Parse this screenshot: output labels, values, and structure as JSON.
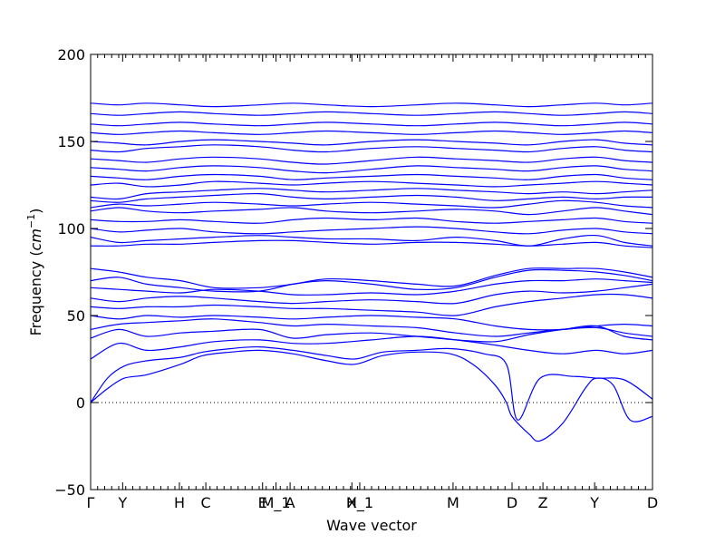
{
  "chart_data": {
    "type": "line",
    "title": "",
    "xlabel": "Wave vector",
    "ylabel_prefix": "Frequency (",
    "ylabel_unit_base": "cm",
    "ylabel_unit_exp": "−1",
    "ylabel_suffix": ")",
    "ylim": [
      -50,
      200
    ],
    "xlim": [
      0,
      1
    ],
    "yticks": [
      -50,
      0,
      50,
      100,
      150,
      200
    ],
    "ytick_labels": [
      "−50",
      "0",
      "50",
      "100",
      "150",
      "200"
    ],
    "high_symmetry_points": [
      {
        "label": "Γ",
        "x": 0.0
      },
      {
        "label": "Y",
        "x": 0.057
      },
      {
        "label": "H",
        "x": 0.158
      },
      {
        "label": "C",
        "x": 0.205
      },
      {
        "label": "E",
        "x": 0.306
      },
      {
        "label": "M_1",
        "x": 0.33
      },
      {
        "label": "A",
        "x": 0.355
      },
      {
        "label": "X",
        "x": 0.465
      },
      {
        "label": "H_1",
        "x": 0.479
      },
      {
        "label": "M",
        "x": 0.645
      },
      {
        "label": "D",
        "x": 0.75
      },
      {
        "label": "Z",
        "x": 0.805
      },
      {
        "label": "Y",
        "x": 0.897
      },
      {
        "label": "D",
        "x": 1.0
      }
    ],
    "zero_line": true,
    "series_color": "#0000ff",
    "series": [
      {
        "x": [
          0,
          0.03,
          0.06,
          0.1,
          0.16,
          0.2,
          0.25,
          0.3,
          0.36,
          0.42,
          0.47,
          0.52,
          0.58,
          0.64,
          0.68,
          0.72,
          0.74,
          0.75,
          0.78,
          0.8,
          0.84,
          0.88,
          0.9,
          0.93,
          0.96,
          1.0
        ],
        "y": [
          0,
          8,
          14,
          16,
          22,
          27,
          29,
          30,
          28,
          24,
          22,
          27,
          29,
          28,
          22,
          10,
          0,
          -8,
          -18,
          -22,
          -12,
          8,
          14,
          10,
          -10,
          -8
        ]
      },
      {
        "x": [
          0,
          0.03,
          0.06,
          0.1,
          0.16,
          0.2,
          0.25,
          0.3,
          0.36,
          0.42,
          0.47,
          0.52,
          0.58,
          0.64,
          0.7,
          0.74,
          0.76,
          0.8,
          0.86,
          0.9,
          0.95,
          1.0
        ],
        "y": [
          0,
          14,
          21,
          24,
          26,
          29,
          31,
          32,
          30,
          27,
          25,
          29,
          30,
          31,
          28,
          22,
          -10,
          14,
          15,
          14,
          13,
          2
        ]
      },
      {
        "x": [
          0,
          0.05,
          0.1,
          0.16,
          0.22,
          0.3,
          0.36,
          0.42,
          0.5,
          0.58,
          0.65,
          0.72,
          0.78,
          0.84,
          0.9,
          0.95,
          1.0
        ],
        "y": [
          25,
          34,
          30,
          32,
          35,
          36,
          34,
          34,
          36,
          38,
          36,
          33,
          30,
          28,
          30,
          28,
          30
        ]
      },
      {
        "x": [
          0,
          0.05,
          0.1,
          0.16,
          0.22,
          0.3,
          0.36,
          0.42,
          0.5,
          0.58,
          0.65,
          0.72,
          0.78,
          0.84,
          0.9,
          0.95,
          1.0
        ],
        "y": [
          37,
          42,
          38,
          40,
          41,
          42,
          37,
          39,
          40,
          38,
          36,
          35,
          39,
          42,
          44,
          38,
          36
        ]
      },
      {
        "x": [
          0,
          0.05,
          0.1,
          0.16,
          0.22,
          0.3,
          0.36,
          0.42,
          0.5,
          0.58,
          0.65,
          0.72,
          0.78,
          0.84,
          0.9,
          0.95,
          1.0
        ],
        "y": [
          42,
          45,
          46,
          47,
          48,
          46,
          44,
          45,
          44,
          43,
          40,
          38,
          40,
          42,
          43,
          40,
          38
        ]
      },
      {
        "x": [
          0,
          0.05,
          0.1,
          0.16,
          0.22,
          0.3,
          0.36,
          0.42,
          0.5,
          0.58,
          0.65,
          0.72,
          0.78,
          0.84,
          0.9,
          0.95,
          1.0
        ],
        "y": [
          50,
          48,
          50,
          49,
          50,
          49,
          48,
          49,
          50,
          49,
          48,
          44,
          42,
          42,
          44,
          45,
          44
        ]
      },
      {
        "x": [
          0,
          0.05,
          0.1,
          0.16,
          0.22,
          0.3,
          0.36,
          0.42,
          0.5,
          0.58,
          0.65,
          0.72,
          0.78,
          0.84,
          0.9,
          0.95,
          1.0
        ],
        "y": [
          55,
          54,
          55,
          55,
          56,
          55,
          54,
          54,
          53,
          52,
          50,
          55,
          58,
          60,
          62,
          62,
          60
        ]
      },
      {
        "x": [
          0,
          0.05,
          0.1,
          0.16,
          0.22,
          0.3,
          0.36,
          0.42,
          0.5,
          0.58,
          0.65,
          0.72,
          0.78,
          0.84,
          0.9,
          0.95,
          1.0
        ],
        "y": [
          60,
          58,
          60,
          61,
          60,
          58,
          57,
          58,
          59,
          58,
          57,
          62,
          64,
          63,
          64,
          66,
          68
        ]
      },
      {
        "x": [
          0,
          0.05,
          0.1,
          0.16,
          0.22,
          0.3,
          0.36,
          0.42,
          0.5,
          0.58,
          0.65,
          0.72,
          0.78,
          0.84,
          0.9,
          0.95,
          1.0
        ],
        "y": [
          66,
          65,
          64,
          63,
          65,
          64,
          62,
          62,
          63,
          62,
          64,
          68,
          70,
          70,
          71,
          70,
          69
        ]
      },
      {
        "x": [
          0,
          0.05,
          0.1,
          0.16,
          0.22,
          0.3,
          0.36,
          0.42,
          0.5,
          0.58,
          0.65,
          0.72,
          0.78,
          0.84,
          0.9,
          0.95,
          1.0
        ],
        "y": [
          70,
          72,
          68,
          66,
          64,
          64,
          68,
          70,
          68,
          65,
          66,
          72,
          76,
          76,
          75,
          73,
          70
        ]
      },
      {
        "x": [
          0,
          0.05,
          0.1,
          0.16,
          0.22,
          0.3,
          0.36,
          0.42,
          0.5,
          0.58,
          0.65,
          0.72,
          0.78,
          0.84,
          0.9,
          0.95,
          1.0
        ],
        "y": [
          77,
          75,
          72,
          70,
          66,
          66,
          68,
          71,
          70,
          68,
          67,
          73,
          77,
          77,
          77,
          75,
          72
        ]
      },
      {
        "x": [
          0,
          0.05,
          0.1,
          0.16,
          0.22,
          0.3,
          0.36,
          0.42,
          0.5,
          0.58,
          0.65,
          0.72,
          0.78,
          0.84,
          0.9,
          0.95,
          1.0
        ],
        "y": [
          90,
          90,
          91,
          91,
          92,
          93,
          93,
          92,
          91,
          92,
          92,
          91,
          90,
          91,
          92,
          90,
          89
        ]
      },
      {
        "x": [
          0,
          0.05,
          0.1,
          0.16,
          0.22,
          0.3,
          0.36,
          0.42,
          0.5,
          0.58,
          0.65,
          0.72,
          0.78,
          0.84,
          0.9,
          0.95,
          1.0
        ],
        "y": [
          95,
          92,
          93,
          94,
          95,
          96,
          95,
          94,
          94,
          93,
          95,
          93,
          90,
          94,
          96,
          92,
          90
        ]
      },
      {
        "x": [
          0,
          0.05,
          0.1,
          0.16,
          0.22,
          0.3,
          0.36,
          0.42,
          0.5,
          0.58,
          0.65,
          0.72,
          0.78,
          0.84,
          0.9,
          0.95,
          1.0
        ],
        "y": [
          100,
          98,
          99,
          100,
          98,
          97,
          98,
          99,
          100,
          101,
          100,
          98,
          97,
          99,
          100,
          98,
          97
        ]
      },
      {
        "x": [
          0,
          0.05,
          0.1,
          0.16,
          0.22,
          0.3,
          0.36,
          0.42,
          0.5,
          0.58,
          0.65,
          0.72,
          0.78,
          0.84,
          0.9,
          0.95,
          1.0
        ],
        "y": [
          105,
          104,
          104,
          105,
          104,
          103,
          105,
          106,
          105,
          106,
          104,
          103,
          104,
          105,
          106,
          104,
          103
        ]
      },
      {
        "x": [
          0,
          0.05,
          0.1,
          0.16,
          0.22,
          0.3,
          0.36,
          0.42,
          0.5,
          0.58,
          0.65,
          0.72,
          0.78,
          0.84,
          0.9,
          0.95,
          1.0
        ],
        "y": [
          110,
          112,
          110,
          109,
          110,
          111,
          112,
          110,
          109,
          110,
          111,
          110,
          108,
          110,
          112,
          110,
          108
        ]
      },
      {
        "x": [
          0,
          0.05,
          0.1,
          0.16,
          0.22,
          0.3,
          0.36,
          0.42,
          0.5,
          0.58,
          0.65,
          0.72,
          0.78,
          0.84,
          0.9,
          0.95,
          1.0
        ],
        "y": [
          112,
          114,
          113,
          114,
          115,
          114,
          113,
          114,
          115,
          114,
          113,
          112,
          114,
          116,
          115,
          113,
          112
        ]
      },
      {
        "x": [
          0,
          0.05,
          0.1,
          0.16,
          0.22,
          0.3,
          0.36,
          0.42,
          0.5,
          0.58,
          0.65,
          0.72,
          0.78,
          0.84,
          0.9,
          0.95,
          1.0
        ],
        "y": [
          116,
          115,
          117,
          118,
          119,
          120,
          118,
          117,
          118,
          119,
          118,
          116,
          117,
          118,
          117,
          118,
          118
        ]
      },
      {
        "x": [
          0,
          0.05,
          0.1,
          0.16,
          0.22,
          0.3,
          0.36,
          0.42,
          0.5,
          0.58,
          0.65,
          0.72,
          0.78,
          0.84,
          0.9,
          0.95,
          1.0
        ],
        "y": [
          118,
          117,
          120,
          121,
          122,
          123,
          122,
          121,
          122,
          123,
          122,
          121,
          120,
          121,
          120,
          121,
          122
        ]
      },
      {
        "x": [
          0,
          0.05,
          0.1,
          0.16,
          0.22,
          0.3,
          0.36,
          0.42,
          0.5,
          0.58,
          0.65,
          0.72,
          0.78,
          0.84,
          0.9,
          0.95,
          1.0
        ],
        "y": [
          125,
          126,
          124,
          125,
          127,
          126,
          125,
          126,
          127,
          126,
          125,
          124,
          125,
          126,
          127,
          126,
          125
        ]
      },
      {
        "x": [
          0,
          0.05,
          0.1,
          0.16,
          0.22,
          0.3,
          0.36,
          0.42,
          0.5,
          0.58,
          0.65,
          0.72,
          0.78,
          0.84,
          0.9,
          0.95,
          1.0
        ],
        "y": [
          130,
          129,
          128,
          130,
          131,
          130,
          128,
          129,
          130,
          131,
          130,
          129,
          128,
          130,
          131,
          129,
          128
        ]
      },
      {
        "x": [
          0,
          0.05,
          0.1,
          0.16,
          0.22,
          0.3,
          0.36,
          0.42,
          0.5,
          0.58,
          0.65,
          0.72,
          0.78,
          0.84,
          0.9,
          0.95,
          1.0
        ],
        "y": [
          135,
          134,
          133,
          135,
          136,
          135,
          133,
          132,
          134,
          136,
          135,
          134,
          133,
          135,
          136,
          134,
          133
        ]
      },
      {
        "x": [
          0,
          0.05,
          0.1,
          0.16,
          0.22,
          0.3,
          0.36,
          0.42,
          0.5,
          0.58,
          0.65,
          0.72,
          0.78,
          0.84,
          0.9,
          0.95,
          1.0
        ],
        "y": [
          140,
          139,
          138,
          140,
          141,
          140,
          138,
          137,
          139,
          141,
          140,
          139,
          138,
          140,
          141,
          139,
          138
        ]
      },
      {
        "x": [
          0,
          0.05,
          0.1,
          0.16,
          0.22,
          0.3,
          0.36,
          0.42,
          0.5,
          0.58,
          0.65,
          0.72,
          0.78,
          0.84,
          0.9,
          0.95,
          1.0
        ],
        "y": [
          145,
          144,
          146,
          147,
          148,
          147,
          145,
          144,
          146,
          147,
          146,
          145,
          144,
          146,
          147,
          145,
          144
        ]
      },
      {
        "x": [
          0,
          0.05,
          0.1,
          0.16,
          0.22,
          0.3,
          0.36,
          0.42,
          0.5,
          0.58,
          0.65,
          0.72,
          0.78,
          0.84,
          0.9,
          0.95,
          1.0
        ],
        "y": [
          150,
          149,
          148,
          150,
          151,
          150,
          149,
          148,
          150,
          151,
          150,
          149,
          148,
          150,
          151,
          149,
          148
        ]
      },
      {
        "x": [
          0,
          0.05,
          0.1,
          0.16,
          0.22,
          0.3,
          0.36,
          0.42,
          0.5,
          0.58,
          0.65,
          0.72,
          0.78,
          0.84,
          0.9,
          0.95,
          1.0
        ],
        "y": [
          155,
          154,
          155,
          156,
          155,
          154,
          155,
          156,
          155,
          154,
          155,
          156,
          155,
          154,
          155,
          156,
          155
        ]
      },
      {
        "x": [
          0,
          0.05,
          0.1,
          0.16,
          0.22,
          0.3,
          0.36,
          0.42,
          0.5,
          0.58,
          0.65,
          0.72,
          0.78,
          0.84,
          0.9,
          0.95,
          1.0
        ],
        "y": [
          160,
          159,
          160,
          161,
          160,
          159,
          160,
          161,
          160,
          159,
          160,
          161,
          160,
          159,
          160,
          161,
          160
        ]
      },
      {
        "x": [
          0,
          0.05,
          0.1,
          0.16,
          0.22,
          0.3,
          0.36,
          0.42,
          0.5,
          0.58,
          0.65,
          0.72,
          0.78,
          0.84,
          0.9,
          0.95,
          1.0
        ],
        "y": [
          166,
          165,
          166,
          167,
          166,
          165,
          166,
          167,
          166,
          165,
          166,
          167,
          166,
          165,
          166,
          167,
          166
        ]
      },
      {
        "x": [
          0,
          0.05,
          0.1,
          0.16,
          0.22,
          0.3,
          0.36,
          0.42,
          0.5,
          0.58,
          0.65,
          0.72,
          0.78,
          0.84,
          0.9,
          0.95,
          1.0
        ],
        "y": [
          172,
          171,
          172,
          171,
          170,
          171,
          172,
          171,
          170,
          171,
          172,
          171,
          170,
          171,
          172,
          171,
          172
        ]
      }
    ]
  }
}
